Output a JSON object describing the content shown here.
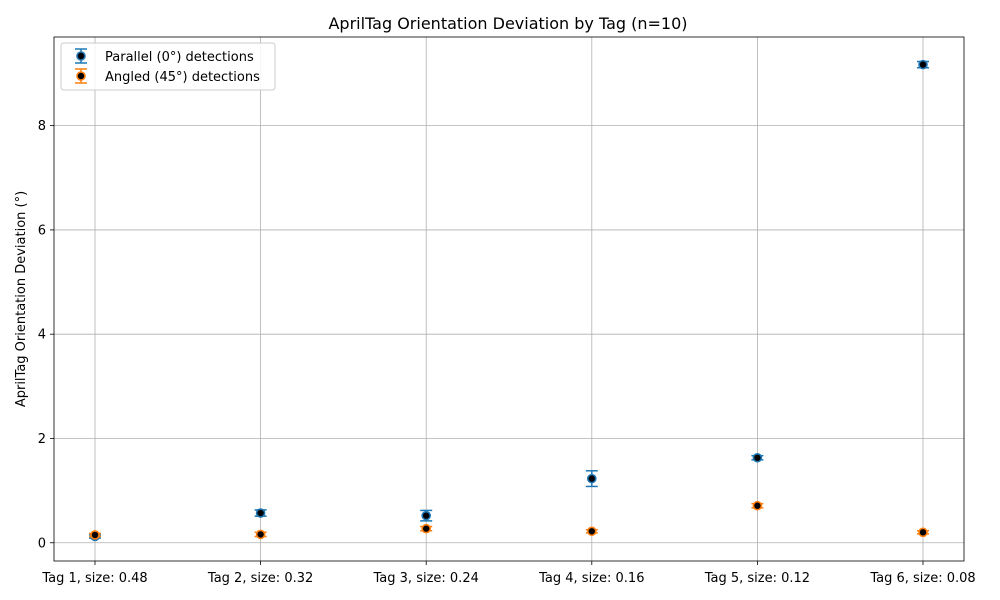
{
  "chart_data": {
    "type": "scatter",
    "title": "AprilTag Orientation Deviation by Tag (n=10)",
    "xlabel": "",
    "ylabel": "AprilTag Orientation Deviation (°)",
    "categories": [
      "Tag 1, size: 0.48",
      "Tag 2, size: 0.32",
      "Tag 3, size: 0.24",
      "Tag 4, size: 0.16",
      "Tag 5, size: 0.12",
      "Tag 6, size: 0.08"
    ],
    "ylim": [
      -0.35,
      9.7
    ],
    "yticks": [
      0,
      2,
      4,
      6,
      8
    ],
    "grid": true,
    "legend_position": "top-left",
    "series": [
      {
        "name": "Parallel (0°) detections",
        "color": "#1f77b4",
        "values": [
          0.12,
          0.57,
          0.52,
          1.23,
          1.63,
          9.17
        ],
        "errors": [
          0.03,
          0.06,
          0.1,
          0.15,
          0.04,
          0.06
        ]
      },
      {
        "name": "Angled (45°) detections",
        "color": "#ff7f0e",
        "values": [
          0.15,
          0.16,
          0.27,
          0.22,
          0.71,
          0.2
        ],
        "errors": [
          0.03,
          0.04,
          0.04,
          0.03,
          0.04,
          0.03
        ]
      }
    ]
  }
}
